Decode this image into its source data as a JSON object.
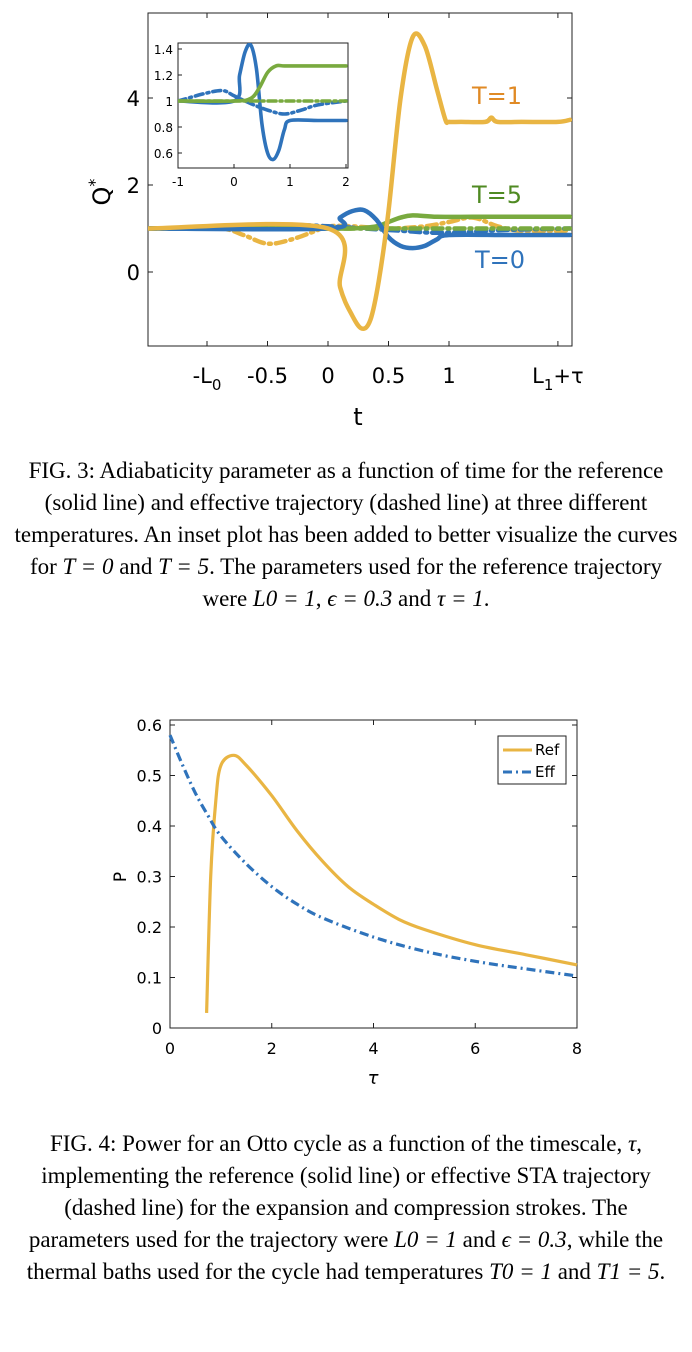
{
  "fig3": {
    "ylabel": "Q",
    "ylabel_sup": "*",
    "xlabel": "t",
    "xticks": [
      "-L",
      "-0.5",
      "0",
      "0.5",
      "1",
      "L"
    ],
    "xtick_subs": {
      "0": "0",
      "5": "1"
    },
    "xtick_suffix": {
      "5": "+τ"
    },
    "yticks": [
      "0",
      "2",
      "4"
    ],
    "labels": {
      "t1": "T=1",
      "t5": "T=5",
      "t0": "T=0"
    },
    "inset": {
      "xticks": [
        "-1",
        "0",
        "1",
        "2"
      ],
      "yticks": [
        "0.6",
        "0.8",
        "1",
        "1.2",
        "1.4"
      ]
    },
    "colors": {
      "t1": "#e9b543",
      "t5": "#79aa3f",
      "t0": "#2f73bb"
    }
  },
  "fig3_caption": {
    "prefix": "FIG. 3: Adiabaticity parameter as a function of time for the reference (solid line) and effective trajectory (dashed line) at three different temperatures. An inset plot has been added to better visualize the curves for ",
    "t0": "T = 0",
    "and": " and ",
    "t5": "T = 5",
    "middle": ". The parameters used for the reference trajectory were ",
    "l0": "L0 = 1",
    "comma": ", ",
    "eps": "ϵ = 0.3",
    "and2": " and ",
    "tau": "τ = 1",
    "end": "."
  },
  "chart_data": [
    {
      "type": "line",
      "title": "",
      "xlabel": "t",
      "ylabel": "Q*",
      "ylim": [
        -1.7,
        5.6
      ],
      "series": [
        {
          "name": "T=1",
          "style": "solid",
          "color": "#e9b543",
          "x": [
            -1.5,
            0,
            0.1,
            0.2,
            0.28,
            0.35,
            0.42,
            0.5,
            0.6,
            0.7,
            0.8,
            0.9,
            0.97,
            1.0,
            1.1,
            1.3,
            1.35,
            1.4,
            1.6,
            1.9,
            2.0
          ],
          "y": [
            1.0,
            1.0,
            -0.35,
            -1.0,
            -1.3,
            -1.1,
            -0.2,
            1.4,
            4.0,
            5.4,
            5.2,
            4.2,
            3.5,
            3.45,
            3.45,
            3.45,
            3.55,
            3.45,
            3.45,
            3.45,
            3.5
          ]
        },
        {
          "name": "T=1",
          "style": "dashed",
          "color": "#e9b543",
          "x": [
            -1.5,
            -0.9,
            -0.7,
            -0.5,
            -0.3,
            -0.1,
            0,
            0.2,
            0.5,
            0.8,
            1.0,
            1.2,
            1.4,
            1.6,
            2.0
          ],
          "y": [
            1.0,
            1.0,
            0.85,
            0.65,
            0.75,
            0.95,
            1.05,
            1.05,
            1.0,
            1.05,
            1.15,
            1.25,
            1.05,
            0.95,
            0.95
          ]
        },
        {
          "name": "T=5",
          "style": "solid",
          "color": "#79aa3f",
          "x": [
            -1.5,
            0,
            0.2,
            0.4,
            0.5,
            0.6,
            0.7,
            0.9,
            1.2,
            1.5,
            2.0
          ],
          "y": [
            1.0,
            1.0,
            1.0,
            1.05,
            1.15,
            1.25,
            1.3,
            1.27,
            1.27,
            1.27,
            1.27
          ]
        },
        {
          "name": "T=5",
          "style": "dashed",
          "color": "#79aa3f",
          "x": [
            -1.5,
            0.5,
            1.0,
            1.5,
            2.0
          ],
          "y": [
            1.0,
            1.0,
            1.0,
            1.0,
            1.0
          ]
        },
        {
          "name": "T=0",
          "style": "solid",
          "color": "#2f73bb",
          "x": [
            -1.5,
            0,
            0.1,
            0.2,
            0.3,
            0.4,
            0.5,
            0.6,
            0.7,
            0.8,
            0.9,
            1.0,
            1.5,
            2.0
          ],
          "y": [
            1.0,
            1.0,
            1.25,
            1.4,
            1.42,
            1.2,
            0.8,
            0.6,
            0.55,
            0.6,
            0.75,
            0.85,
            0.85,
            0.85
          ]
        },
        {
          "name": "T=0",
          "style": "dashed",
          "color": "#2f73bb",
          "x": [
            -1.5,
            -0.9,
            -0.6,
            -0.3,
            0,
            0.3,
            0.6,
            0.9,
            1.2,
            1.5,
            2.0
          ],
          "y": [
            1.0,
            1.0,
            1.05,
            1.08,
            1.05,
            1.0,
            0.95,
            0.9,
            0.93,
            0.97,
            1.0
          ]
        }
      ],
      "inset": {
        "xlim": [
          -1,
          2
        ],
        "ylim": [
          0.5,
          1.5
        ],
        "series": [
          {
            "name": "T=0",
            "style": "solid",
            "color": "#2f73bb",
            "x": [
              -1,
              0,
              0.1,
              0.2,
              0.3,
              0.4,
              0.5,
              0.6,
              0.7,
              0.8,
              0.9,
              1.0,
              1.5,
              2.0
            ],
            "y": [
              1.0,
              1.0,
              1.2,
              1.38,
              1.43,
              1.25,
              0.82,
              0.6,
              0.55,
              0.62,
              0.78,
              0.85,
              0.85,
              0.85
            ]
          },
          {
            "name": "T=0",
            "style": "dashed",
            "color": "#2f73bb",
            "x": [
              -1,
              -0.5,
              -0.2,
              0,
              0.3,
              0.6,
              0.9,
              1.2,
              1.5,
              2.0
            ],
            "y": [
              1.0,
              1.06,
              1.08,
              1.04,
              0.98,
              0.93,
              0.9,
              0.93,
              0.97,
              1.0
            ]
          },
          {
            "name": "T=5",
            "style": "solid",
            "color": "#79aa3f",
            "x": [
              -1,
              0,
              0.3,
              0.45,
              0.6,
              0.75,
              0.9,
              1.2,
              2.0
            ],
            "y": [
              1.0,
              1.0,
              1.02,
              1.1,
              1.22,
              1.27,
              1.27,
              1.27,
              1.27
            ]
          },
          {
            "name": "T=5",
            "style": "dashed",
            "color": "#79aa3f",
            "x": [
              -1,
              0.5,
              1.0,
              1.5,
              2.0
            ],
            "y": [
              1.0,
              1.0,
              1.0,
              1.0,
              1.0
            ]
          }
        ]
      }
    },
    {
      "type": "line",
      "title": "",
      "xlabel": "τ",
      "ylabel": "P",
      "xlim": [
        0,
        8
      ],
      "ylim": [
        0,
        0.6
      ],
      "xticks": [
        "0",
        "2",
        "4",
        "6",
        "8"
      ],
      "yticks": [
        "0",
        "0.1",
        "0.2",
        "0.3",
        "0.4",
        "0.5",
        "0.6"
      ],
      "legend_position": "top-right",
      "series": [
        {
          "name": "Ref",
          "style": "solid",
          "color": "#e9b543",
          "x": [
            0.72,
            0.8,
            0.9,
            1.0,
            1.25,
            1.5,
            2.0,
            2.5,
            3.0,
            3.5,
            4.0,
            4.5,
            5.0,
            6.0,
            7.0,
            8.0
          ],
          "y": [
            0.03,
            0.3,
            0.45,
            0.52,
            0.54,
            0.52,
            0.46,
            0.39,
            0.33,
            0.28,
            0.245,
            0.215,
            0.195,
            0.165,
            0.145,
            0.125
          ]
        },
        {
          "name": "Eff",
          "style": "dashed",
          "color": "#2f73bb",
          "x": [
            0.0,
            0.25,
            0.5,
            0.75,
            1.0,
            1.5,
            2.0,
            2.5,
            3.0,
            4.0,
            5.0,
            6.0,
            7.0,
            8.0
          ],
          "y": [
            0.58,
            0.52,
            0.465,
            0.42,
            0.38,
            0.325,
            0.28,
            0.245,
            0.218,
            0.18,
            0.152,
            0.132,
            0.117,
            0.103
          ]
        }
      ]
    }
  ],
  "fig4_caption": {
    "prefix": "FIG. 4: Power for an Otto cycle as a function of the timescale, ",
    "tau": "τ",
    "middle": ", implementing the reference (solid line) or effective STA trajectory (dashed line) for the expansion and compression strokes. The parameters used for the trajectory were ",
    "l0": "L0 = 1",
    "and": " and ",
    "eps": "ϵ = 0.3",
    "middle2": ", while the thermal baths used for the cycle had temperatures ",
    "t0": "T0 = 1",
    "and2": " and ",
    "t1": "T1 = 5",
    "end": "."
  }
}
